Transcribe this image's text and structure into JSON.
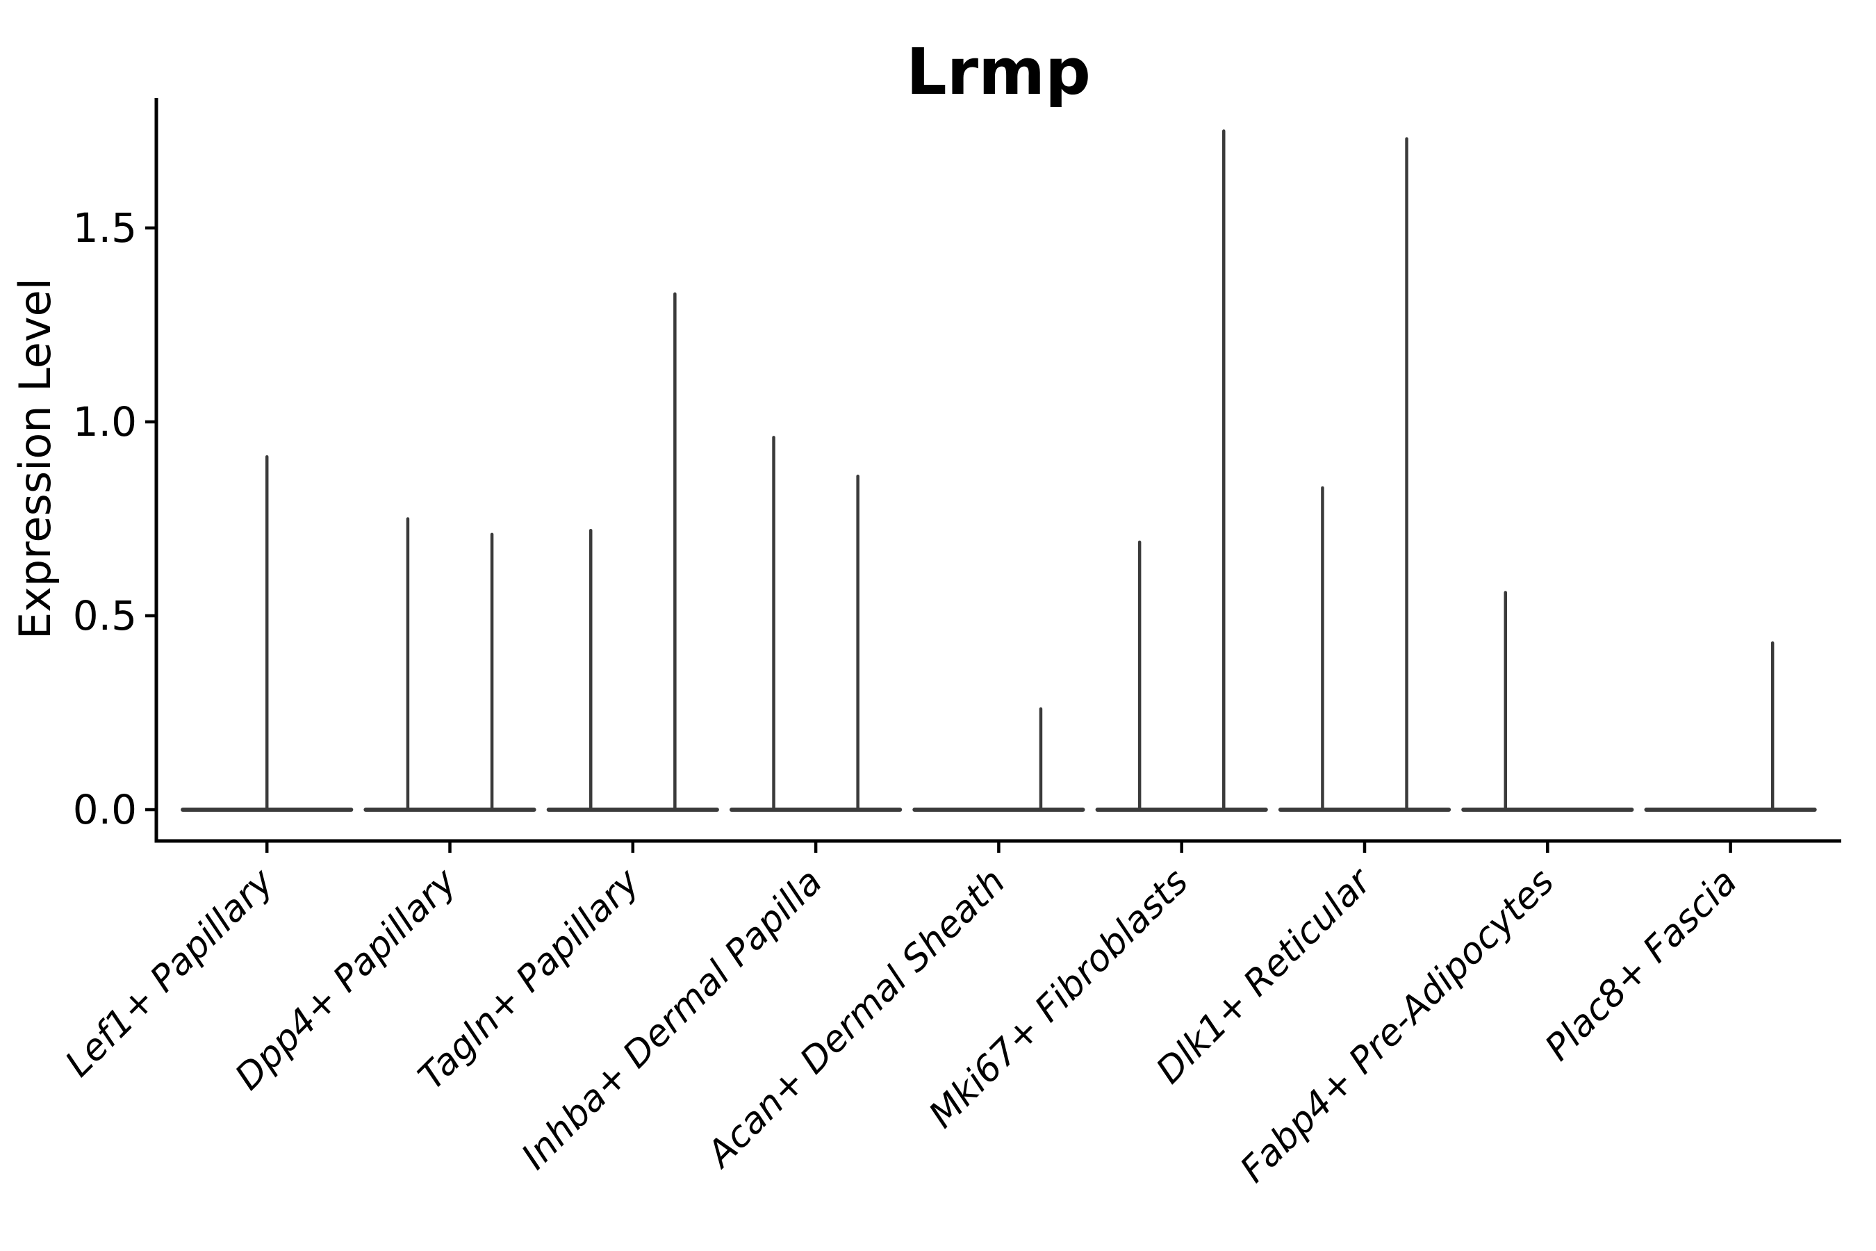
{
  "title": "Lrmp",
  "axes": {
    "ylabel": "Expression Level",
    "ytick_labels": [
      "0.0",
      "0.5",
      "1.0",
      "1.5"
    ]
  },
  "chart_data": {
    "type": "violin",
    "title": "Lrmp",
    "xlabel": "",
    "ylabel": "Expression Level",
    "ylim": [
      0,
      1.84
    ],
    "yticks": [
      0.0,
      0.5,
      1.0,
      1.5
    ],
    "grid": false,
    "legend": "none",
    "background": "#ffffff",
    "categories": [
      "Lef1+ Papillary",
      "Dpp4+ Papillary",
      "Tagln+ Papillary",
      "Inhba+ Dermal Papilla",
      "Acan+ Dermal Sheath",
      "Mki67+ Fibroblasts",
      "Dlk1+ Reticular",
      "Fabp4+ Pre-Adipocytes",
      "Plac8+ Fascia"
    ],
    "violins": [
      {
        "category": "Lef1+ Papillary",
        "baseline_value": 0.0,
        "spikes": [
          {
            "offset": 0.0,
            "max": 0.91
          }
        ]
      },
      {
        "category": "Dpp4+ Papillary",
        "baseline_value": 0.0,
        "spikes": [
          {
            "offset": -0.23,
            "max": 0.75
          },
          {
            "offset": 0.23,
            "max": 0.71
          }
        ]
      },
      {
        "category": "Tagln+ Papillary",
        "baseline_value": 0.0,
        "spikes": [
          {
            "offset": -0.23,
            "max": 0.72
          },
          {
            "offset": 0.23,
            "max": 1.33
          }
        ]
      },
      {
        "category": "Inhba+ Dermal Papilla",
        "baseline_value": 0.0,
        "spikes": [
          {
            "offset": -0.23,
            "max": 0.96
          },
          {
            "offset": 0.23,
            "max": 0.86
          }
        ]
      },
      {
        "category": "Acan+ Dermal Sheath",
        "baseline_value": 0.0,
        "spikes": [
          {
            "offset": 0.23,
            "max": 0.26
          }
        ]
      },
      {
        "category": "Mki67+ Fibroblasts",
        "baseline_value": 0.0,
        "spikes": [
          {
            "offset": -0.23,
            "max": 0.69
          },
          {
            "offset": 0.23,
            "max": 1.75
          }
        ]
      },
      {
        "category": "Dlk1+ Reticular",
        "baseline_value": 0.0,
        "spikes": [
          {
            "offset": -0.23,
            "max": 0.83
          },
          {
            "offset": 0.23,
            "max": 1.73
          }
        ]
      },
      {
        "category": "Fabp4+ Pre-Adipocytes",
        "baseline_value": 0.0,
        "spikes": [
          {
            "offset": -0.23,
            "max": 0.56
          }
        ]
      },
      {
        "category": "Plac8+ Fascia",
        "baseline_value": 0.0,
        "spikes": [
          {
            "offset": 0.23,
            "max": 0.43
          }
        ]
      }
    ],
    "violin_body_halfwidth_frac": 0.46,
    "colors": {
      "violin": "#3a3a3a",
      "axis": "#000000",
      "text": "#000000",
      "background": "#ffffff"
    }
  }
}
